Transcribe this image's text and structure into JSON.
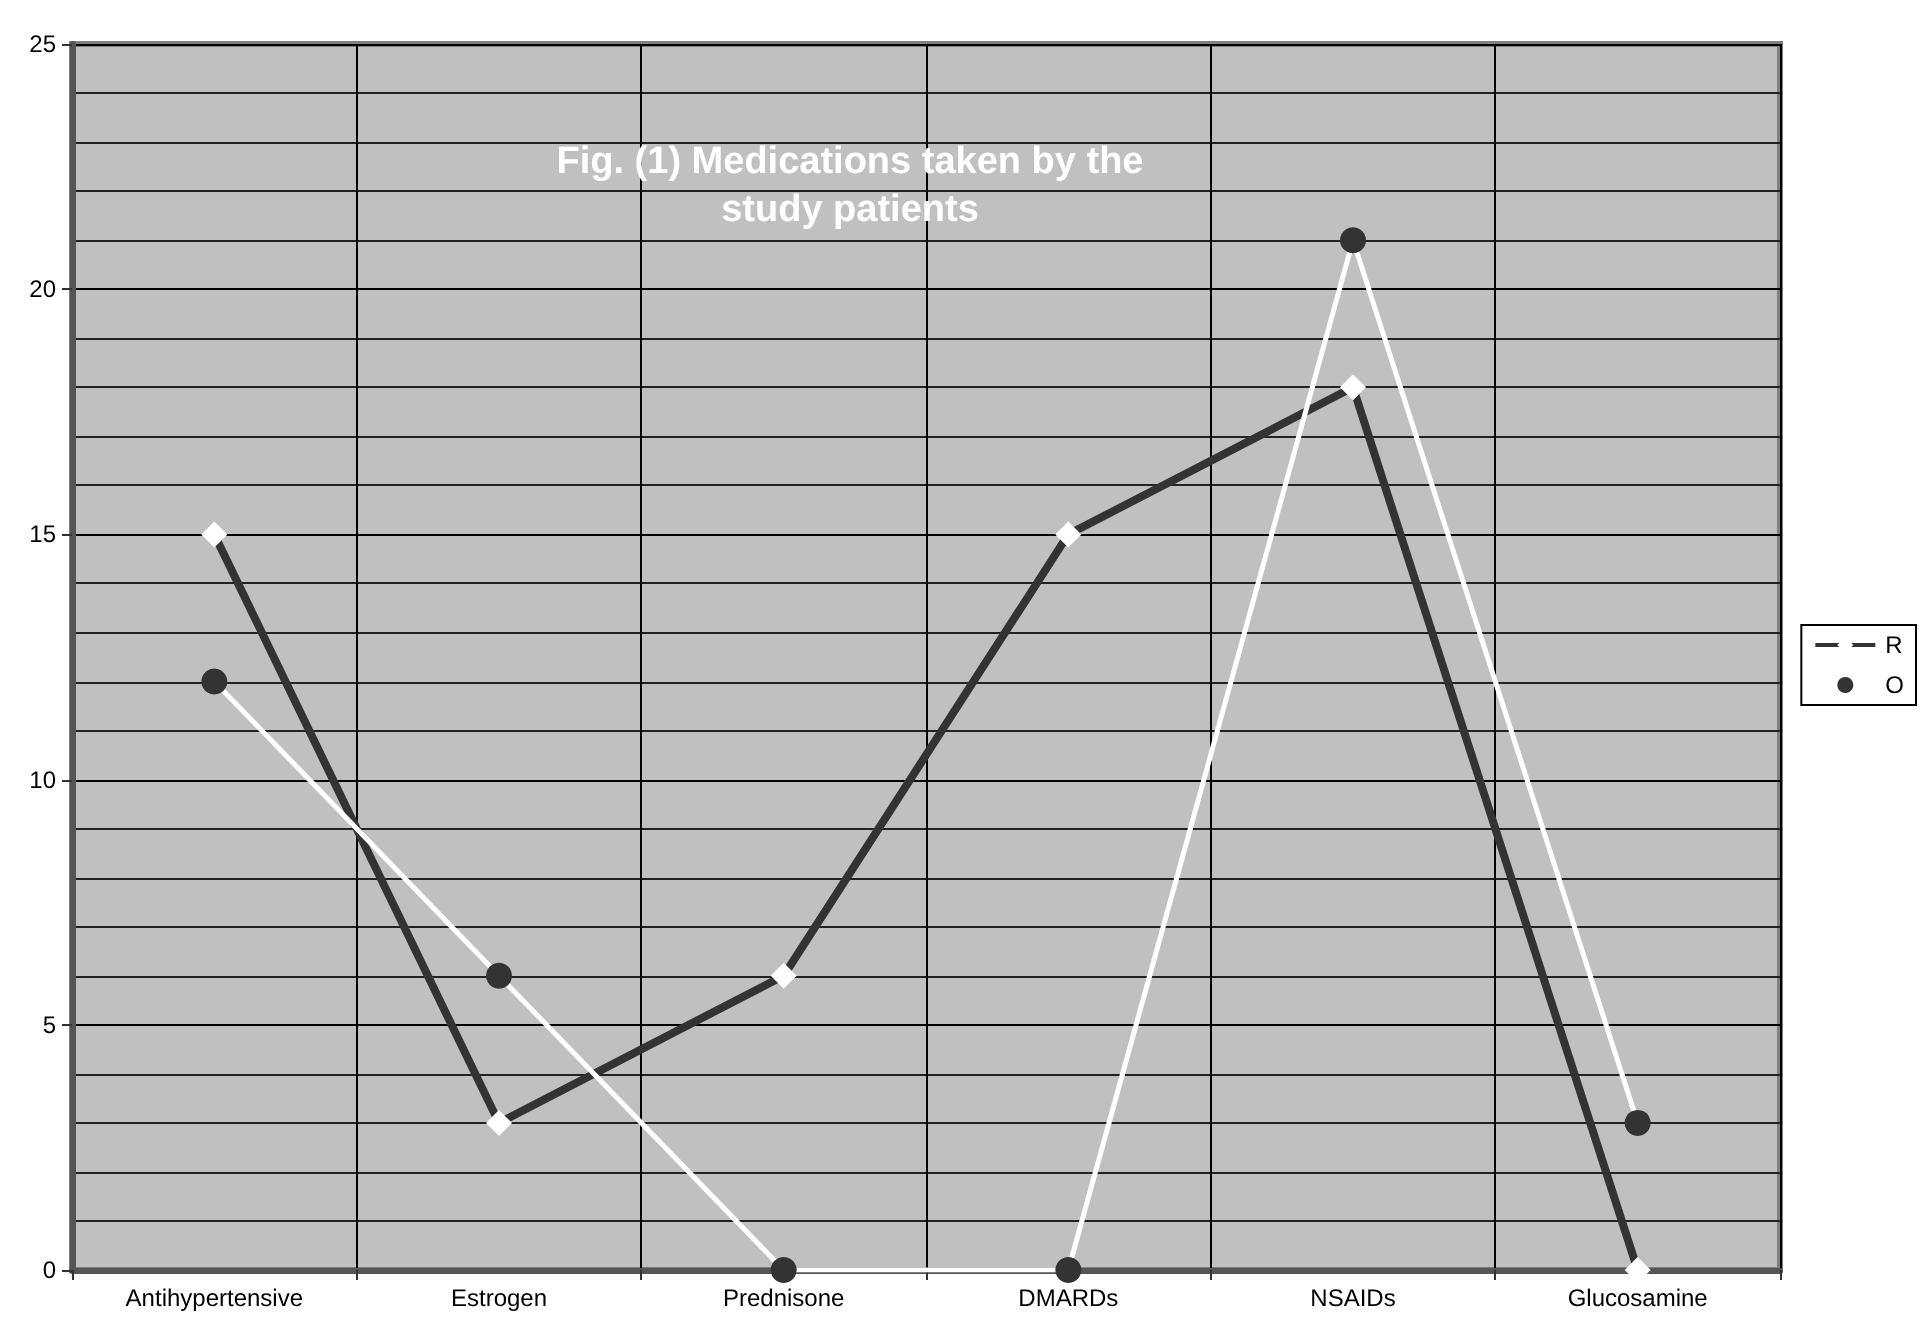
{
  "chart_data": {
    "type": "line",
    "title": "Fig. (1) Medications taken by the\nstudy patients",
    "categories": [
      "Antihypertensive",
      "Estrogen",
      "Prednisone",
      "DMARDs",
      "NSAIDs",
      "Glucosamine"
    ],
    "series": [
      {
        "name": "R",
        "color": "#333333",
        "marker": "diamond",
        "values": [
          15,
          3,
          6,
          15,
          18,
          0
        ]
      },
      {
        "name": "O",
        "color": "#ffffff",
        "marker": "circle",
        "values": [
          12,
          6,
          0,
          0,
          21,
          3
        ]
      }
    ],
    "ylim": [
      0,
      25
    ],
    "yticks": [
      0,
      5,
      10,
      15,
      20,
      25
    ],
    "grid": true,
    "legend": "right"
  }
}
